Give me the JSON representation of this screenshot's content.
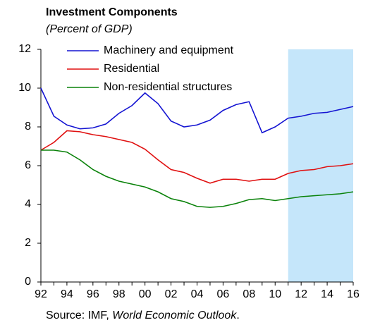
{
  "chart_data": {
    "type": "line",
    "title": "Investment Components",
    "subtitle": "(Percent of GDP)",
    "categories": [
      "92",
      null,
      "94",
      null,
      "96",
      null,
      "98",
      null,
      "00",
      null,
      "02",
      null,
      "04",
      null,
      "06",
      null,
      "08",
      null,
      "10",
      null,
      "12",
      null,
      "14",
      null,
      "16"
    ],
    "series": [
      {
        "name": "Machinery and equipment",
        "color": "#1414d2",
        "values": [
          10.0,
          8.55,
          8.1,
          7.9,
          7.95,
          8.15,
          8.7,
          9.1,
          9.75,
          9.2,
          8.3,
          8.0,
          8.1,
          8.35,
          8.85,
          9.15,
          9.3,
          7.7,
          8.0,
          8.45,
          8.55,
          8.7,
          8.75,
          8.9,
          9.05
        ]
      },
      {
        "name": "Residential",
        "color": "#e01010",
        "values": [
          6.8,
          7.2,
          7.8,
          7.75,
          7.6,
          7.5,
          7.35,
          7.2,
          6.85,
          6.3,
          5.8,
          5.65,
          5.35,
          5.1,
          5.3,
          5.3,
          5.2,
          5.3,
          5.3,
          5.6,
          5.75,
          5.8,
          5.95,
          6.0,
          6.1
        ]
      },
      {
        "name": "Non-residential structures",
        "color": "#0a820a",
        "values": [
          6.8,
          6.8,
          6.7,
          6.3,
          5.8,
          5.45,
          5.2,
          5.05,
          4.9,
          4.65,
          4.3,
          4.15,
          3.9,
          3.85,
          3.9,
          4.05,
          4.25,
          4.3,
          4.2,
          4.3,
          4.4,
          4.45,
          4.5,
          4.55,
          4.65
        ]
      }
    ],
    "ylim": [
      0,
      12
    ],
    "yticks": [
      0,
      2,
      4,
      6,
      8,
      10,
      12
    ],
    "shaded_from_category": 19,
    "shade_color": "#c5e6fa",
    "source": {
      "prefix": "Source: IMF, ",
      "italic": "World Economic Outlook",
      "suffix": "."
    }
  }
}
